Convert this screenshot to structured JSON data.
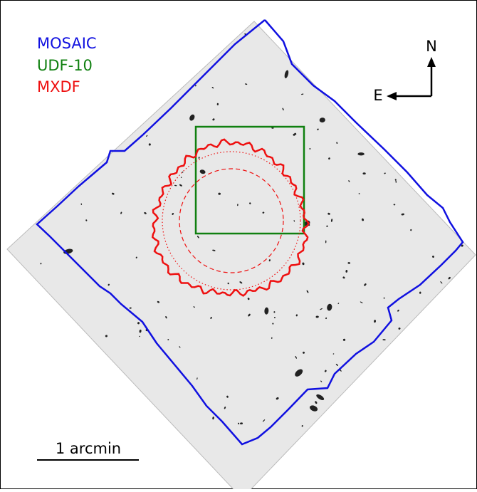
{
  "legend": [
    {
      "label": "MOSAIC",
      "color": "#1010e0"
    },
    {
      "label": "UDF-10",
      "color": "#108010"
    },
    {
      "label": "MXDF",
      "color": "#ee1010"
    }
  ],
  "compass": {
    "north": "N",
    "east": "E"
  },
  "scale_bar": {
    "label": "1 arcmin"
  }
}
